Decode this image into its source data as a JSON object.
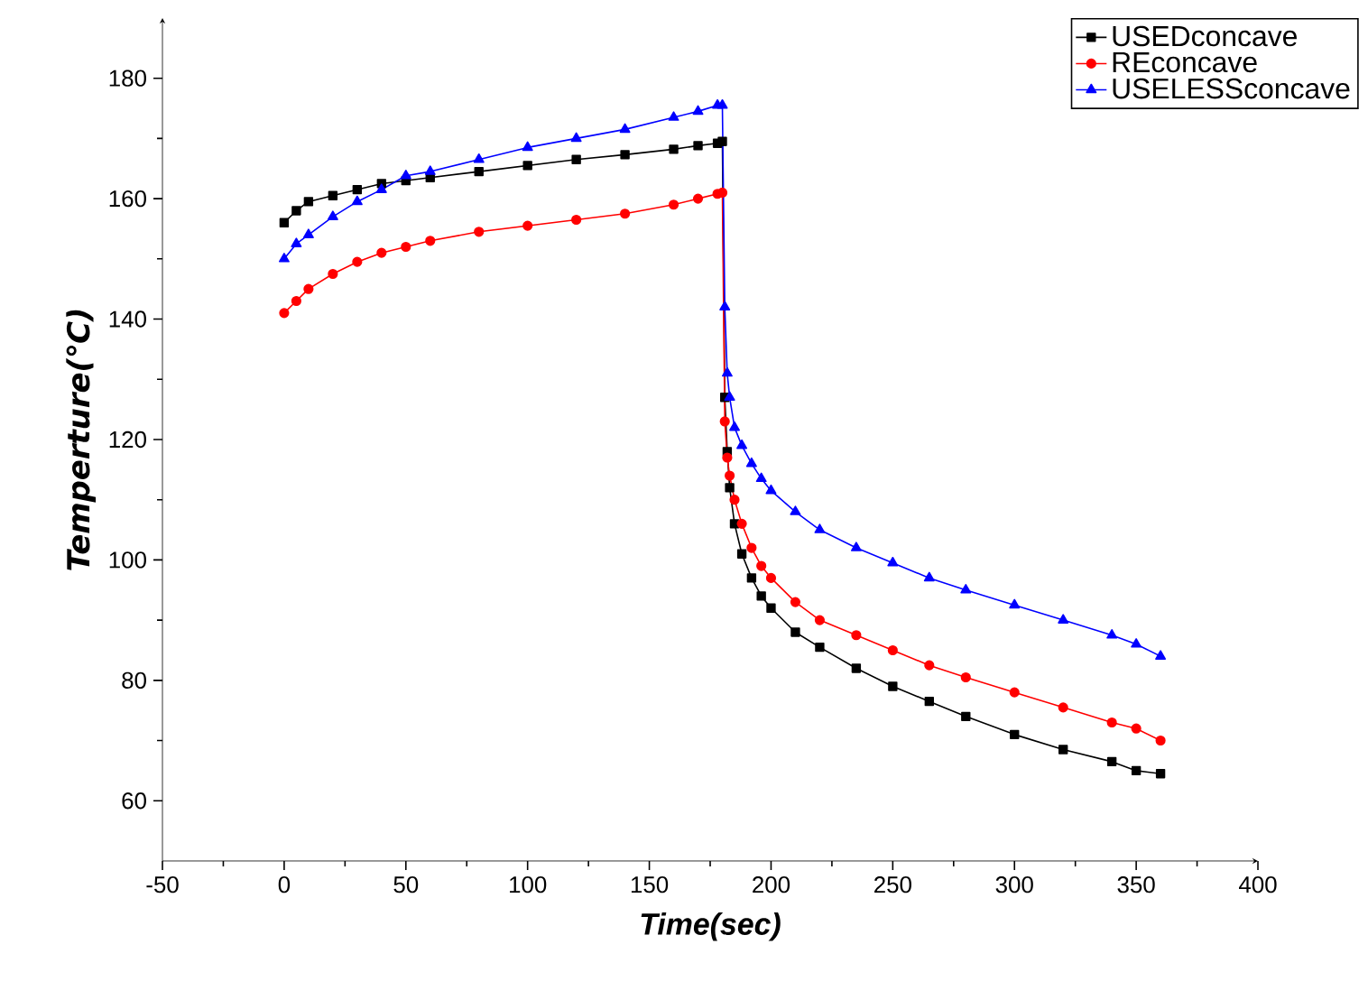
{
  "chart_data": {
    "type": "line",
    "xlabel": "Time(sec)",
    "ylabel": "Temperture(℃)",
    "x": [
      0,
      5,
      10,
      20,
      30,
      40,
      50,
      60,
      80,
      100,
      120,
      140,
      160,
      170,
      178,
      180,
      181,
      182,
      183,
      185,
      188,
      192,
      196,
      200,
      210,
      220,
      235,
      250,
      265,
      280,
      300,
      320,
      340,
      350,
      360
    ],
    "series": [
      {
        "name": "USEDconcave",
        "color": "#000000",
        "marker": "square",
        "values": [
          156,
          158,
          159.5,
          160.5,
          161.5,
          162.5,
          163,
          163.5,
          164.5,
          165.5,
          166.5,
          167.3,
          168.2,
          168.8,
          169.2,
          169.5,
          127,
          118,
          112,
          106,
          101,
          97,
          94,
          92,
          88,
          85.5,
          82,
          79,
          76.5,
          74,
          71,
          68.5,
          66.5,
          65,
          64.5
        ]
      },
      {
        "name": "REconcave",
        "color": "#ff0000",
        "marker": "circle",
        "values": [
          141,
          143,
          145,
          147.5,
          149.5,
          151,
          152,
          153,
          154.5,
          155.5,
          156.5,
          157.5,
          159,
          160,
          160.8,
          161,
          123,
          117,
          114,
          110,
          106,
          102,
          99,
          97,
          93,
          90,
          87.5,
          85,
          82.5,
          80.5,
          78,
          75.5,
          73,
          72,
          70
        ]
      },
      {
        "name": "USELESSconcave",
        "color": "#0000ff",
        "marker": "triangle",
        "values": [
          150,
          152.5,
          154,
          157,
          159.5,
          161.5,
          163.8,
          164.5,
          166.5,
          168.5,
          170,
          171.5,
          173.5,
          174.5,
          175.5,
          175.5,
          142,
          131,
          127,
          122,
          119,
          116,
          113.5,
          111.5,
          108,
          105,
          102,
          99.5,
          97,
          95,
          92.5,
          90,
          87.5,
          86,
          84
        ]
      }
    ],
    "xlim": [
      -50,
      400
    ],
    "xticks": [
      -50,
      0,
      50,
      100,
      150,
      200,
      250,
      300,
      350,
      400
    ],
    "ylim": [
      50,
      190
    ],
    "yticks": [
      60,
      80,
      100,
      120,
      140,
      160,
      180
    ],
    "legend": "top right"
  }
}
